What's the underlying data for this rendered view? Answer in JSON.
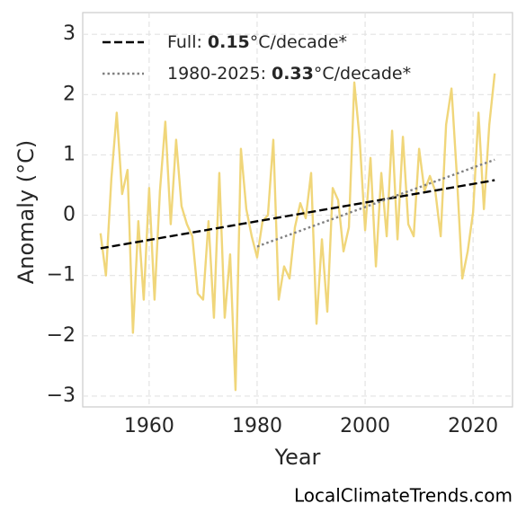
{
  "chart_data": {
    "type": "line",
    "x_label": "Year",
    "y_label": "Anomaly (°C)",
    "source": "LocalClimateTrends.com",
    "xlim": [
      1947.7,
      2027.3
    ],
    "ylim": [
      -3.18,
      3.36
    ],
    "xticks": [
      1960,
      1980,
      2000,
      2020
    ],
    "yticks": [
      {
        "value": -3,
        "label": "−3"
      },
      {
        "value": -2,
        "label": "−2"
      },
      {
        "value": -1,
        "label": "−1"
      },
      0,
      1,
      2,
      3
    ],
    "grid": true,
    "series": [
      {
        "color": "#f0d67a",
        "x": [
          1951,
          1952,
          1953,
          1954,
          1955,
          1956,
          1957,
          1958,
          1959,
          1960,
          1961,
          1962,
          1963,
          1964,
          1965,
          1966,
          1967,
          1968,
          1969,
          1970,
          1971,
          1972,
          1973,
          1974,
          1975,
          1976,
          1977,
          1978,
          1979,
          1980,
          1981,
          1982,
          1983,
          1984,
          1985,
          1986,
          1987,
          1988,
          1989,
          1990,
          1991,
          1992,
          1993,
          1994,
          1995,
          1996,
          1997,
          1998,
          1999,
          2000,
          2001,
          2002,
          2003,
          2004,
          2005,
          2006,
          2007,
          2008,
          2009,
          2010,
          2011,
          2012,
          2013,
          2014,
          2015,
          2016,
          2017,
          2018,
          2019,
          2020,
          2021,
          2022,
          2023,
          2024
        ],
        "values": [
          -0.3,
          -1.0,
          0.6,
          1.7,
          0.35,
          0.75,
          -1.95,
          -0.1,
          -1.4,
          0.45,
          -1.4,
          0.4,
          1.55,
          -0.15,
          1.25,
          0.15,
          -0.15,
          -0.35,
          -1.3,
          -1.4,
          -0.1,
          -1.7,
          0.7,
          -1.7,
          -0.65,
          -2.9,
          1.1,
          0.1,
          -0.35,
          -0.7,
          -0.1,
          0.0,
          1.25,
          -1.4,
          -0.85,
          -1.05,
          -0.2,
          0.2,
          -0.05,
          0.7,
          -1.8,
          -0.4,
          -1.6,
          0.45,
          0.25,
          -0.6,
          -0.2,
          2.2,
          1.25,
          -0.25,
          0.95,
          -0.85,
          0.7,
          -0.35,
          1.4,
          -0.4,
          1.3,
          -0.15,
          -0.35,
          1.1,
          0.4,
          0.65,
          0.4,
          -0.35,
          1.5,
          2.1,
          0.65,
          -1.05,
          -0.6,
          0.05,
          1.7,
          0.1,
          1.5,
          2.35
        ]
      },
      {
        "name": "Full:",
        "rate": 0.15,
        "unit": "°C/decade*",
        "color": "#000000",
        "dash": "dashed",
        "x": [
          1951,
          2024
        ],
        "values": [
          -0.55,
          0.58
        ]
      },
      {
        "name": "1980-2025:",
        "rate": 0.33,
        "unit": "°C/decade*",
        "color": "#808080",
        "dash": "dotted",
        "x": [
          1980,
          2024
        ],
        "values": [
          -0.52,
          0.92
        ]
      }
    ],
    "legend": "upper left"
  }
}
